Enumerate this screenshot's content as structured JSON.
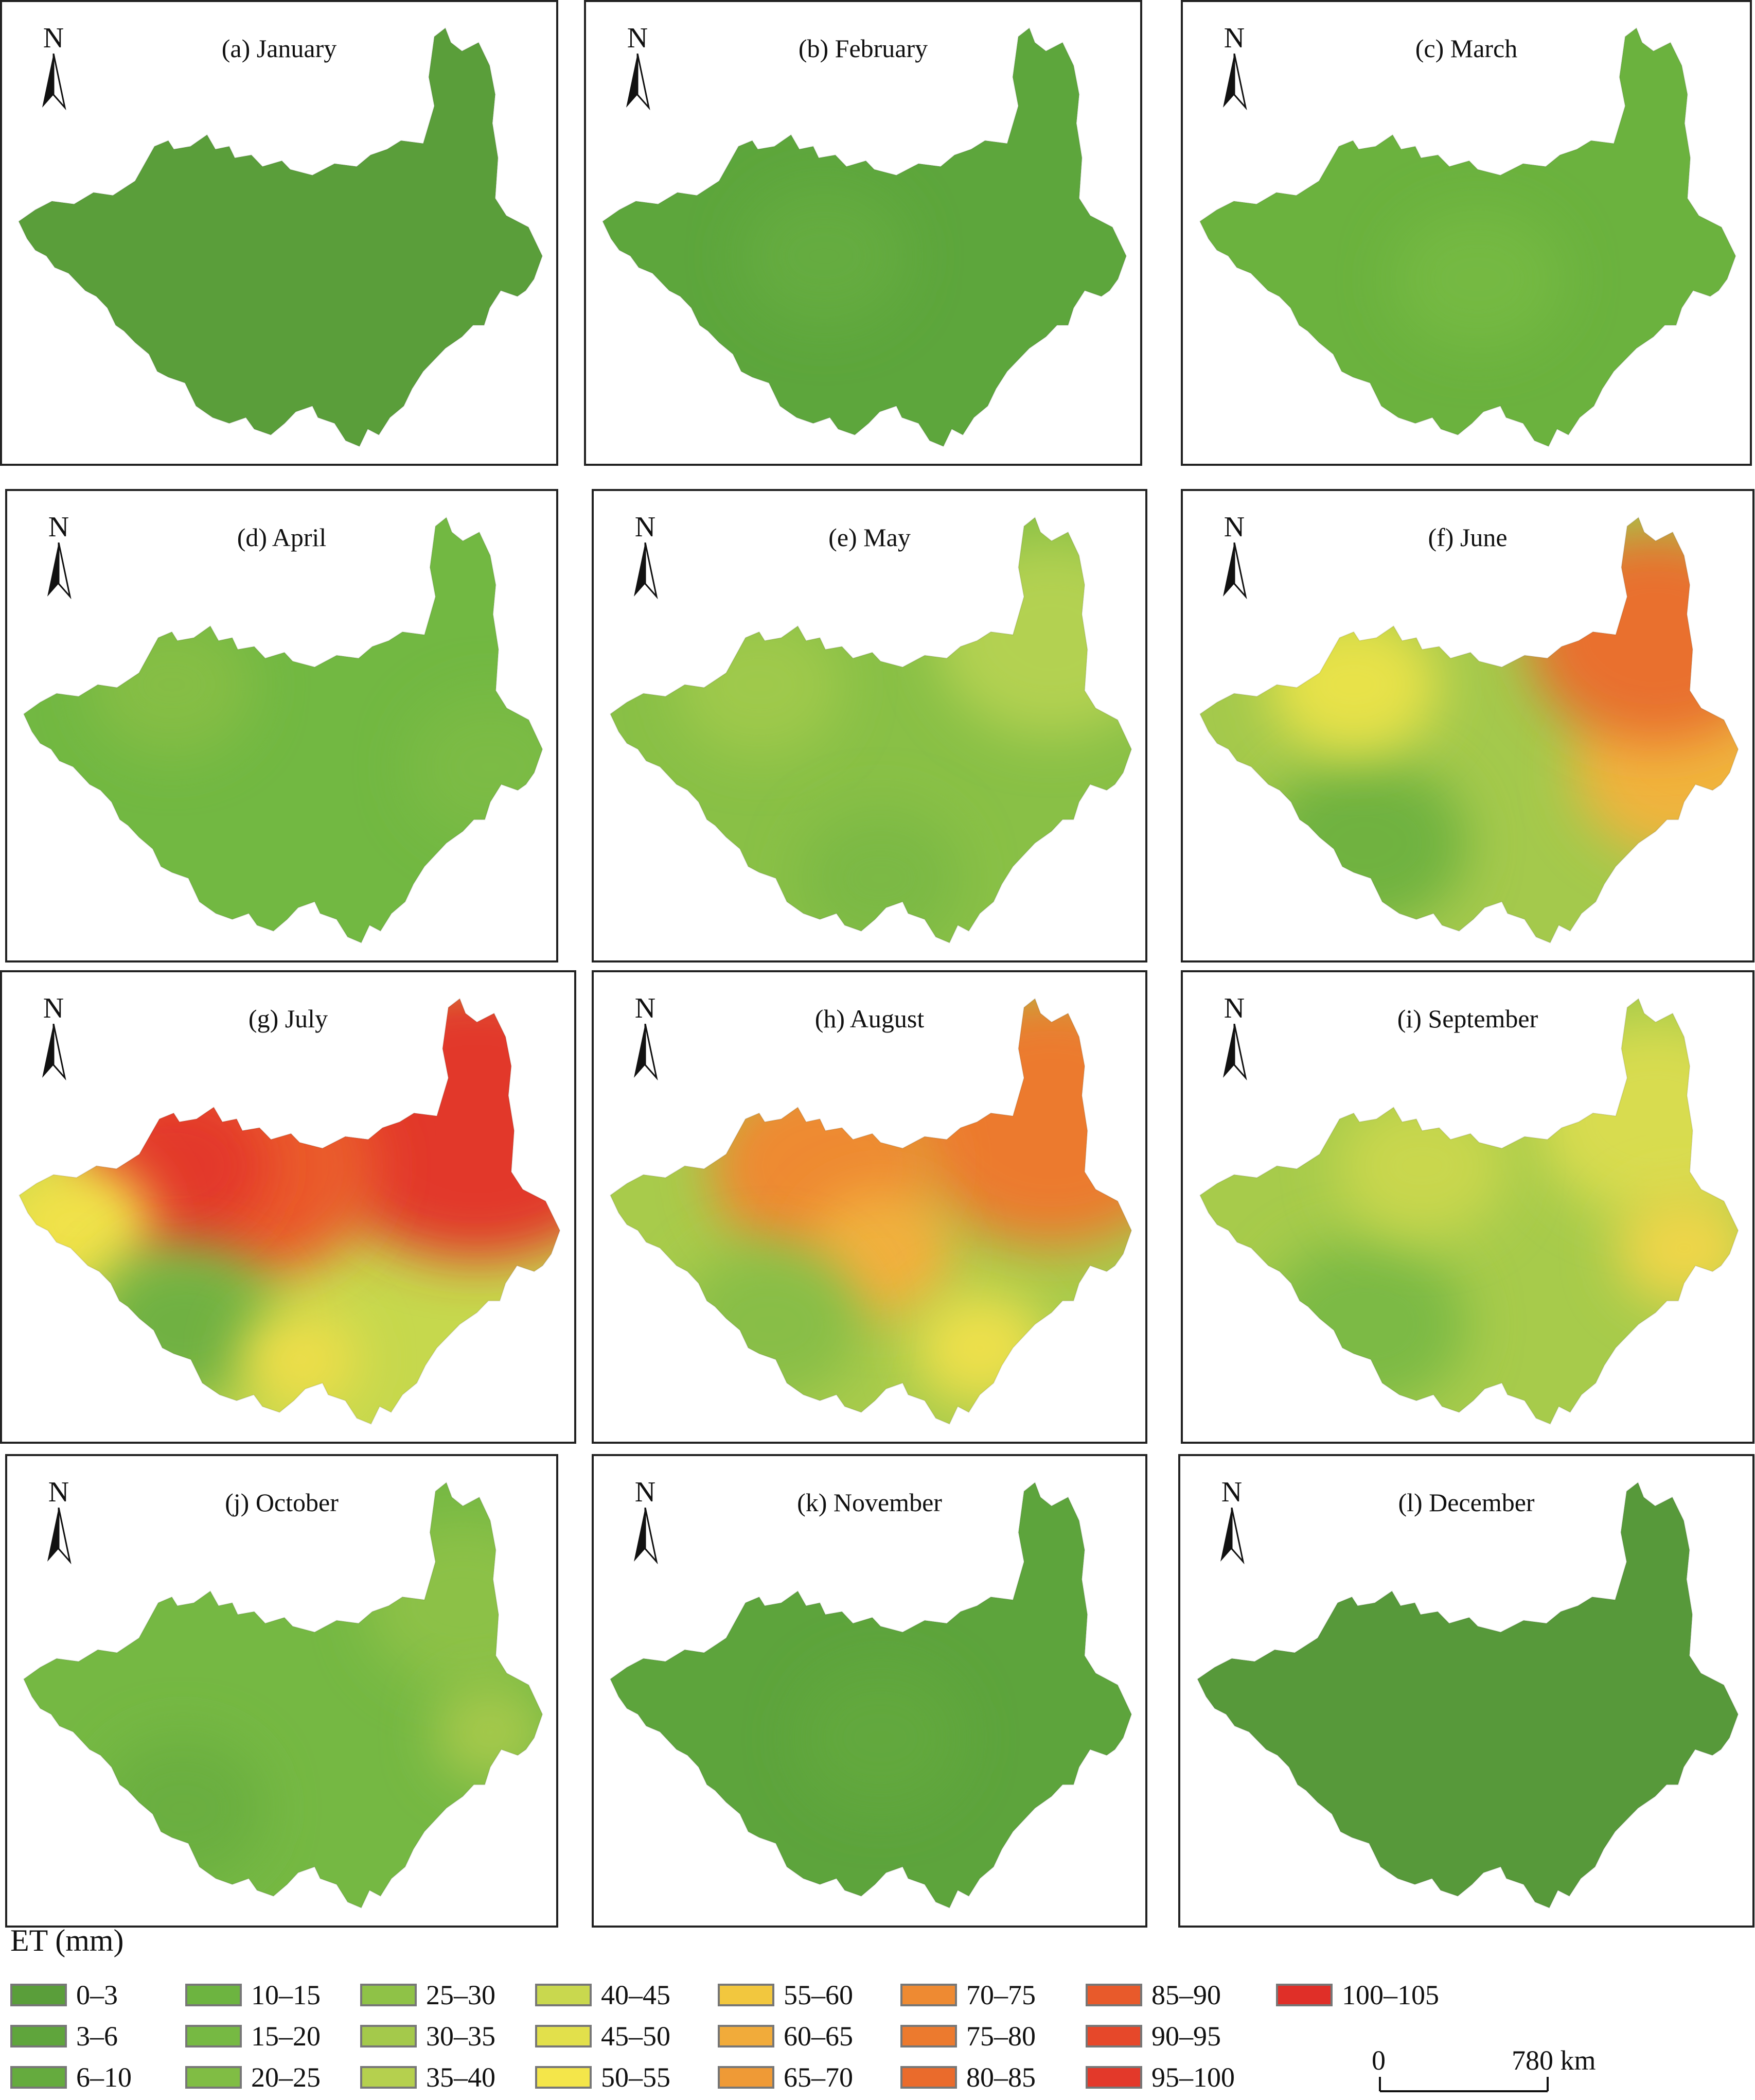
{
  "panels": [
    {
      "title": "(a) January",
      "base": "#5a9e3a",
      "blobs": []
    },
    {
      "title": "(b) February",
      "base": "#5da63c",
      "blobs": [
        {
          "c": "#65ac40",
          "at": "cw",
          "s": 1
        }
      ]
    },
    {
      "title": "(c) March",
      "base": "#6bb23e",
      "blobs": [
        {
          "c": "#74b943",
          "at": "c",
          "s": 1
        }
      ]
    },
    {
      "title": "(d) April",
      "base": "#72b842",
      "blobs": [
        {
          "c": "#85be45",
          "at": "nw",
          "s": 1
        },
        {
          "c": "#7bbb44",
          "at": "e",
          "s": 1
        }
      ]
    },
    {
      "title": "(e) May",
      "base": "#89c046",
      "blobs": [
        {
          "c": "#b3d151",
          "at": "ne",
          "s": 1.4
        },
        {
          "c": "#9fc94b",
          "at": "nw",
          "s": 1
        },
        {
          "c": "#7cb944",
          "at": "s",
          "s": 1
        }
      ]
    },
    {
      "title": "(f) June",
      "base": "#a4c94c",
      "blobs": [
        {
          "c": "#6fb241",
          "at": "sw",
          "s": 1.2
        },
        {
          "c": "#e8e24a",
          "at": "nw",
          "s": 1
        },
        {
          "c": "#f0b43c",
          "at": "e",
          "s": 1.3
        },
        {
          "c": "#e9702e",
          "at": "ne",
          "s": 1.5
        }
      ]
    },
    {
      "title": "(g) July",
      "base": "#c6d84d",
      "blobs": [
        {
          "c": "#e2392a",
          "at": "ne",
          "s": 2.0
        },
        {
          "c": "#ea5a2a",
          "at": "n",
          "s": 1.6
        },
        {
          "c": "#e3382b",
          "at": "nw",
          "s": 1.1
        },
        {
          "c": "#f1e24a",
          "at": "w",
          "s": 0.9
        },
        {
          "c": "#6fb142",
          "at": "sw",
          "s": 1.1
        },
        {
          "c": "#eede49",
          "at": "s",
          "s": 0.7
        }
      ]
    },
    {
      "title": "(h) August",
      "base": "#a8cb4b",
      "blobs": [
        {
          "c": "#ec7a2d",
          "at": "ne",
          "s": 1.8
        },
        {
          "c": "#ee8a32",
          "at": "n",
          "s": 1.4
        },
        {
          "c": "#f2b03d",
          "at": "c",
          "s": 0.9
        },
        {
          "c": "#eee04b",
          "at": "se",
          "s": 0.8
        },
        {
          "c": "#88be46",
          "at": "sw",
          "s": 1.1
        }
      ]
    },
    {
      "title": "(i) September",
      "base": "#a7cb4b",
      "blobs": [
        {
          "c": "#d8dc4f",
          "at": "ne",
          "s": 1.4
        },
        {
          "c": "#efd64a",
          "at": "e",
          "s": 0.8
        },
        {
          "c": "#7cba44",
          "at": "sw",
          "s": 1.2
        },
        {
          "c": "#c9d74d",
          "at": "n",
          "s": 1.0
        }
      ]
    },
    {
      "title": "(j) October",
      "base": "#75b843",
      "blobs": [
        {
          "c": "#8cc147",
          "at": "ne",
          "s": 1.2
        },
        {
          "c": "#a6c94b",
          "at": "e",
          "s": 0.7
        },
        {
          "c": "#6aaf3f",
          "at": "sw",
          "s": 1.0
        }
      ]
    },
    {
      "title": "(k) November",
      "base": "#5da43c",
      "blobs": [
        {
          "c": "#62a83e",
          "at": "c",
          "s": 1
        }
      ]
    },
    {
      "title": "(l) December",
      "base": "#57993a",
      "blobs": []
    }
  ],
  "north_label": "N",
  "legend": {
    "title": "ET (mm)",
    "items": [
      {
        "label": "0–3",
        "color": "#5a9e3a"
      },
      {
        "label": "3–6",
        "color": "#5fa53c"
      },
      {
        "label": "6–10",
        "color": "#65ab3e"
      },
      {
        "label": "10–15",
        "color": "#6db440"
      },
      {
        "label": "15–20",
        "color": "#76b943"
      },
      {
        "label": "20–25",
        "color": "#80bd44"
      },
      {
        "label": "25–30",
        "color": "#8fc247"
      },
      {
        "label": "30–35",
        "color": "#a4c94b"
      },
      {
        "label": "35–40",
        "color": "#b5d04e"
      },
      {
        "label": "40–45",
        "color": "#c9d84e"
      },
      {
        "label": "45–50",
        "color": "#e2e04b"
      },
      {
        "label": "50–55",
        "color": "#f4e64a"
      },
      {
        "label": "55–60",
        "color": "#f2c73e"
      },
      {
        "label": "60–65",
        "color": "#f1ab3a"
      },
      {
        "label": "65–70",
        "color": "#ef9a36"
      },
      {
        "label": "70–75",
        "color": "#ee8a32"
      },
      {
        "label": "75–80",
        "color": "#ec7a2e"
      },
      {
        "label": "80–85",
        "color": "#ea6b2c"
      },
      {
        "label": "85–90",
        "color": "#e85a2b"
      },
      {
        "label": "90–95",
        "color": "#e6482a"
      },
      {
        "label": "95–100",
        "color": "#e3392a"
      },
      {
        "label": "100–105",
        "color": "#e02f28"
      }
    ]
  },
  "scale_bar": {
    "start": "0",
    "end": "780 km"
  }
}
